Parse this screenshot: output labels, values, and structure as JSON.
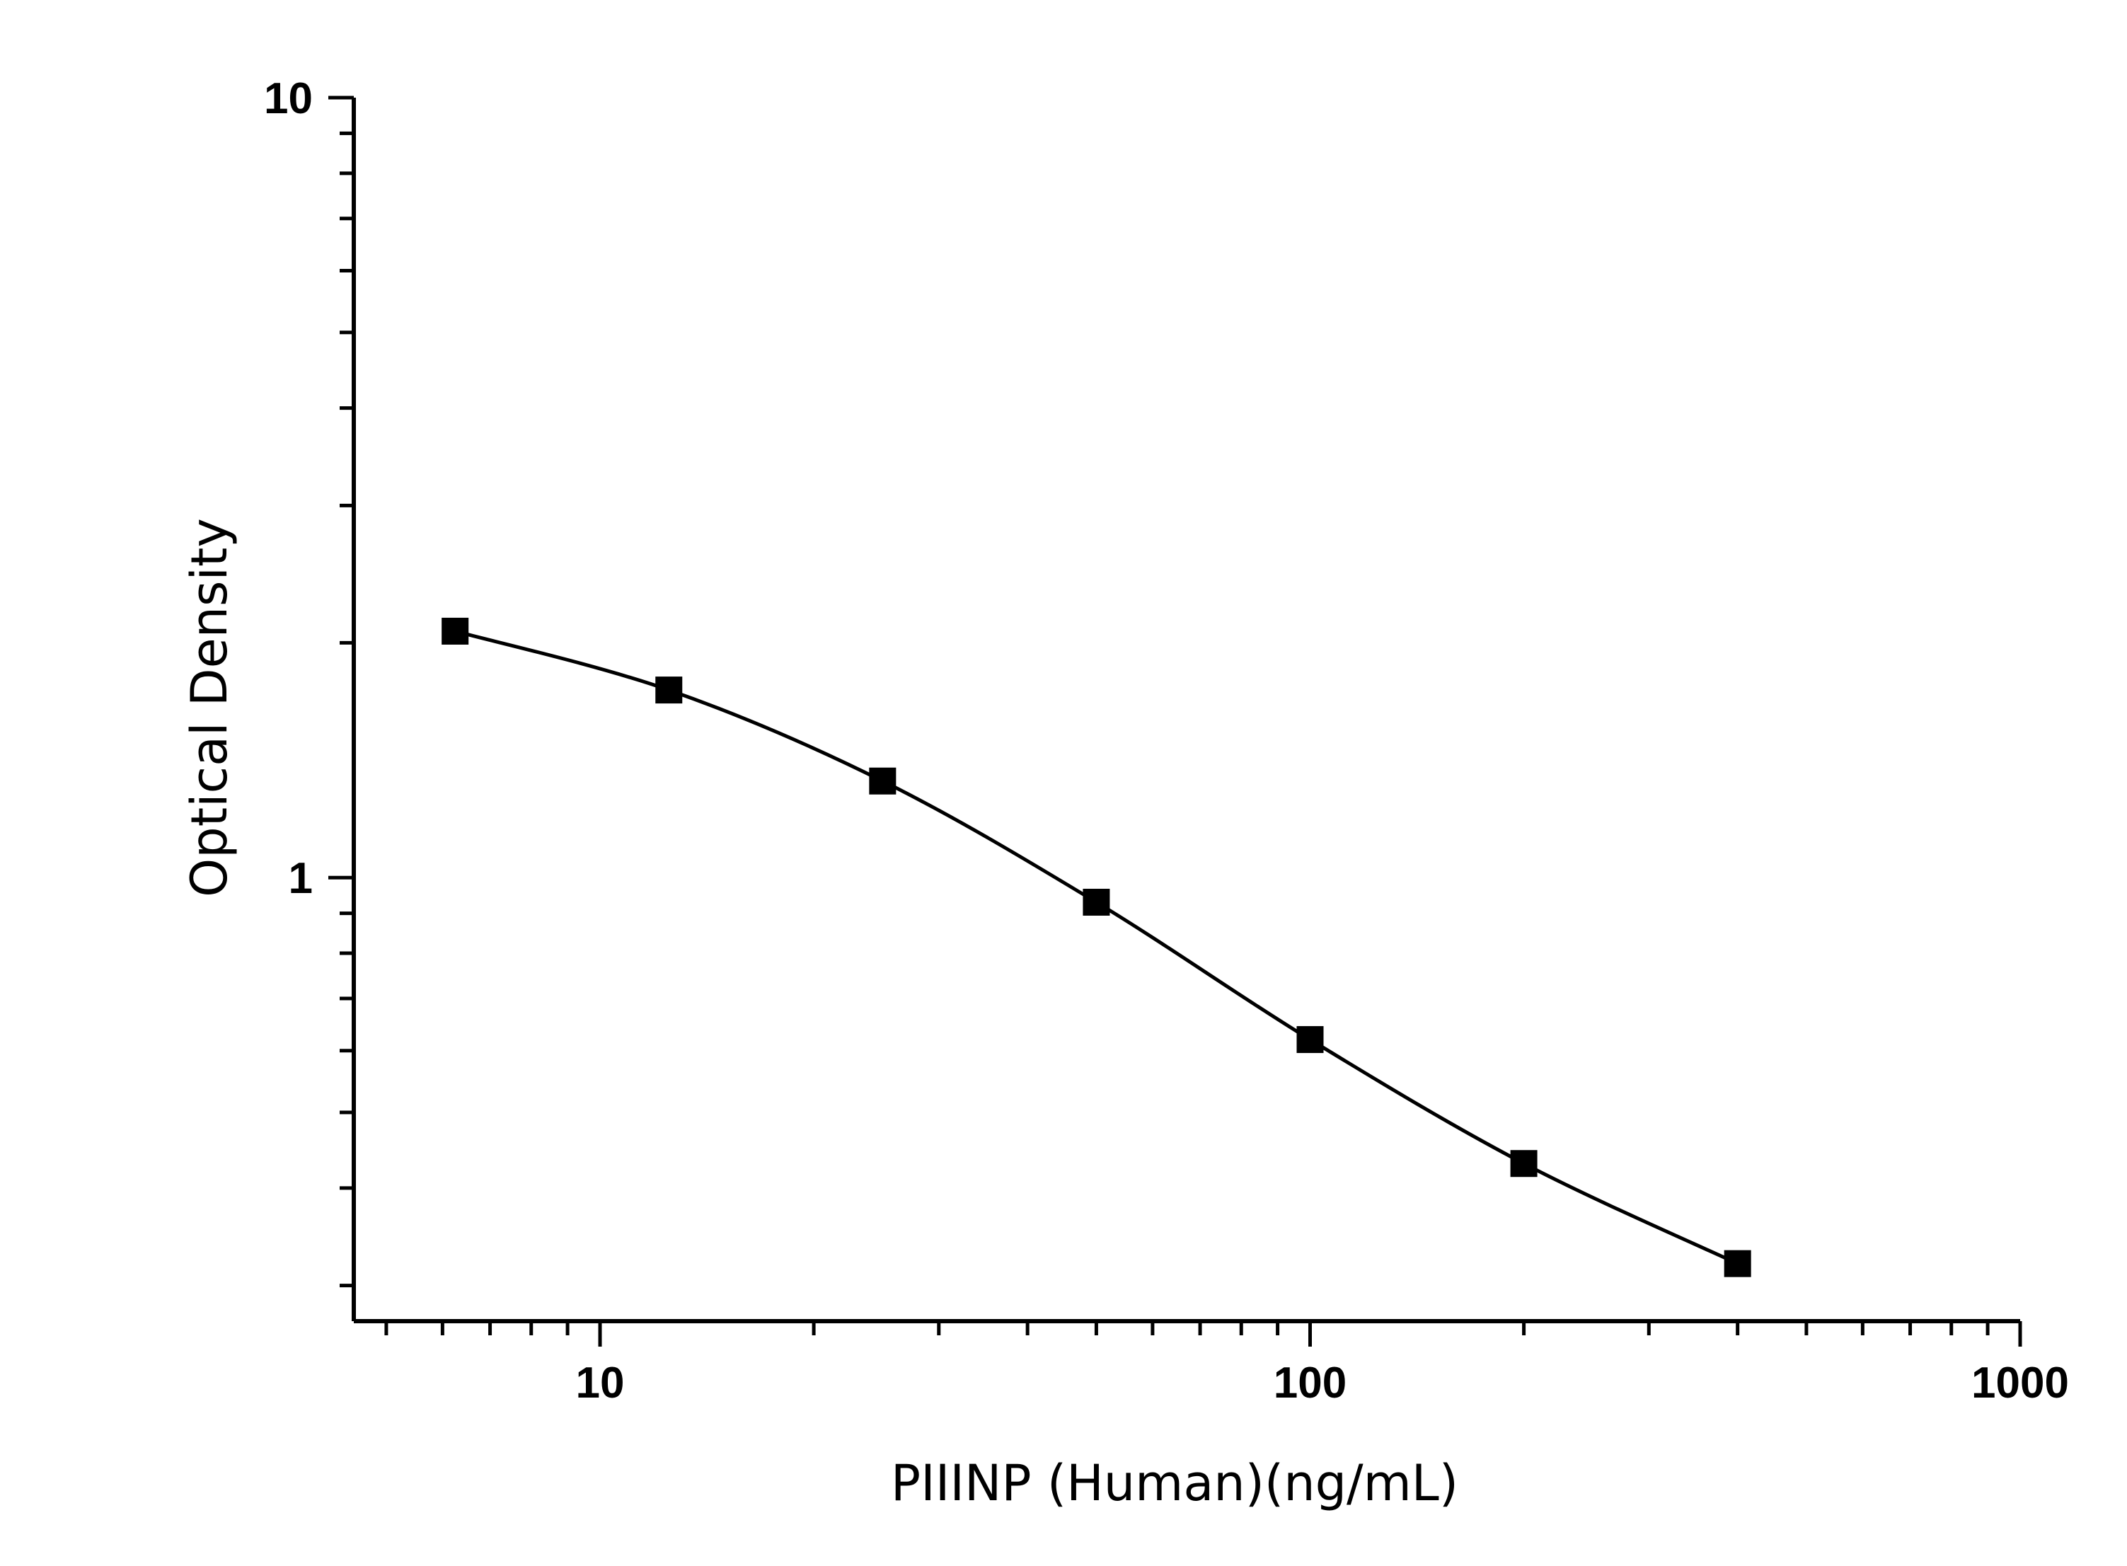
{
  "chart_data": {
    "type": "scatter",
    "title": "",
    "xlabel": "PIIINP (Human)(ng/mL)",
    "ylabel": "Optical Density",
    "x_scale": "log",
    "y_scale": "log",
    "xlim": [
      4.5,
      1000
    ],
    "ylim": [
      0.27,
      10
    ],
    "grid": false,
    "legend": "none",
    "x_tick_labels": [
      "10",
      "100",
      "1000"
    ],
    "y_tick_labels": [
      "1",
      "10"
    ],
    "series": [
      {
        "x": [
          6.25,
          12.5,
          25,
          50,
          100,
          200,
          400
        ],
        "y": [
          2.07,
          1.74,
          1.33,
          0.93,
          0.62,
          0.43,
          0.32
        ],
        "marker": "square",
        "fit": "smooth curve",
        "color": "#000000"
      }
    ]
  }
}
